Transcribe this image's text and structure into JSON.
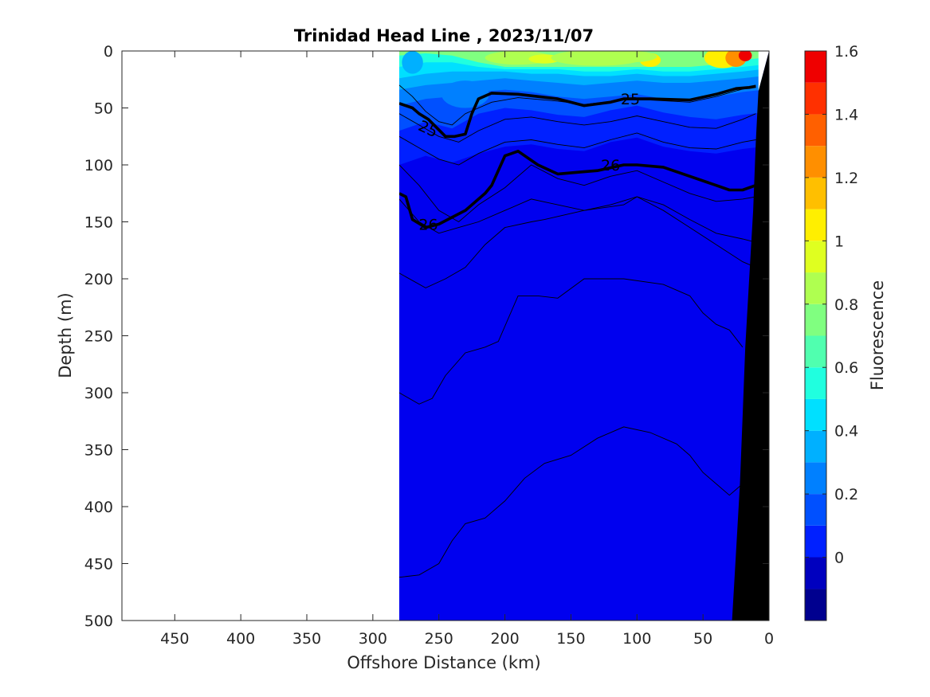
{
  "chart_data": {
    "type": "contour",
    "title": "Trinidad Head Line , 2023/11/07",
    "xlabel": "Offshore Distance (km)",
    "ylabel": "Depth (m)",
    "xlim": [
      490,
      0
    ],
    "ylim": [
      0,
      500
    ],
    "x_reversed": true,
    "y_reversed": true,
    "xticks": [
      450,
      400,
      350,
      300,
      250,
      200,
      150,
      100,
      50,
      0
    ],
    "yticks": [
      0,
      50,
      100,
      150,
      200,
      250,
      300,
      350,
      400,
      450,
      500
    ],
    "data_extent_km": [
      280,
      0
    ],
    "colorbar": {
      "label": "Fluorescence",
      "levels": [
        -0.2,
        -0.1,
        0,
        0.1,
        0.2,
        0.3,
        0.4,
        0.5,
        0.6,
        0.7,
        0.8,
        0.9,
        1.0,
        1.1,
        1.2,
        1.3,
        1.4,
        1.5,
        1.6
      ],
      "ticks": [
        0,
        0.2,
        0.4,
        0.6,
        0.8,
        1,
        1.2,
        1.4,
        1.6
      ],
      "tick_labels": [
        "0",
        "0.2",
        "0.4",
        "0.6",
        "0.8",
        "1",
        "1.2",
        "1.4",
        "1.6"
      ],
      "colors": [
        "#00008f",
        "#0000bf",
        "#0000ef",
        "#0020ff",
        "#0050ff",
        "#0080ff",
        "#00b0ff",
        "#00e0ff",
        "#20ffdf",
        "#50ffaf",
        "#80ff80",
        "#afff50",
        "#dfff20",
        "#ffef00",
        "#ffbf00",
        "#ff8f00",
        "#ff6000",
        "#ff3000",
        "#ef0000",
        "#bf0000"
      ]
    },
    "density_contour_labels": [
      {
        "text": "25",
        "x": 105,
        "y": 42
      },
      {
        "text": "25",
        "x": 258,
        "y": 68
      },
      {
        "text": "26",
        "x": 120,
        "y": 100
      },
      {
        "text": "26",
        "x": 258,
        "y": 152
      }
    ],
    "thin_isolines": [
      {
        "x": [
          280,
          270,
          260,
          250,
          240,
          230,
          210,
          190,
          160,
          140,
          110,
          90,
          60,
          40,
          25,
          15,
          10
        ],
        "y": [
          30,
          40,
          53,
          62,
          65,
          55,
          45,
          41,
          44,
          47,
          43,
          43,
          45,
          40,
          35,
          32,
          30
        ]
      },
      {
        "x": [
          280,
          265,
          250,
          235,
          220,
          200,
          180,
          160,
          140,
          120,
          100,
          80,
          60,
          40,
          20,
          10
        ],
        "y": [
          55,
          65,
          75,
          80,
          70,
          60,
          58,
          62,
          65,
          62,
          57,
          62,
          67,
          68,
          60,
          55
        ]
      },
      {
        "x": [
          280,
          265,
          250,
          235,
          220,
          200,
          180,
          160,
          140,
          120,
          100,
          80,
          60,
          40,
          20,
          10
        ],
        "y": [
          75,
          85,
          95,
          100,
          90,
          80,
          78,
          82,
          85,
          78,
          72,
          80,
          85,
          86,
          80,
          78
        ]
      },
      {
        "x": [
          280,
          265,
          250,
          235,
          220,
          200,
          180,
          160,
          140,
          120,
          100,
          80,
          60,
          40,
          20,
          10
        ],
        "y": [
          100,
          118,
          140,
          150,
          135,
          120,
          100,
          112,
          118,
          110,
          105,
          115,
          125,
          132,
          130,
          128
        ]
      },
      {
        "x": [
          280,
          265,
          250,
          235,
          220,
          200,
          180,
          160,
          140,
          120,
          100,
          80,
          60,
          40,
          20,
          10
        ],
        "y": [
          130,
          150,
          160,
          155,
          150,
          140,
          130,
          135,
          140,
          135,
          128,
          135,
          148,
          160,
          165,
          168
        ]
      },
      {
        "x": [
          280,
          260,
          245,
          230,
          215,
          200,
          180,
          170,
          140,
          110,
          100,
          80,
          60,
          40,
          20,
          10
        ],
        "y": [
          195,
          208,
          200,
          190,
          170,
          155,
          150,
          148,
          140,
          135,
          128,
          140,
          155,
          170,
          185,
          190
        ]
      },
      {
        "x": [
          280,
          265,
          255,
          245,
          230,
          215,
          205,
          190,
          175,
          160,
          140,
          110,
          80,
          60,
          50,
          40,
          30,
          20
        ],
        "y": [
          300,
          310,
          305,
          285,
          265,
          260,
          255,
          215,
          215,
          217,
          200,
          200,
          205,
          215,
          230,
          240,
          245,
          260
        ]
      },
      {
        "x": [
          280,
          265,
          250,
          240,
          230,
          215,
          200,
          185,
          170,
          150,
          130,
          110,
          90,
          70,
          60,
          50,
          40,
          30,
          20
        ],
        "y": [
          462,
          460,
          450,
          430,
          415,
          410,
          395,
          375,
          362,
          355,
          340,
          330,
          335,
          345,
          355,
          370,
          380,
          390,
          380
        ]
      }
    ],
    "bold_isolines": [
      {
        "label": "25",
        "x": [
          280,
          270,
          265,
          258,
          245,
          238,
          230,
          225,
          220,
          210,
          190,
          160,
          140,
          120,
          110,
          90,
          60,
          40,
          25,
          15,
          10
        ],
        "y": [
          46,
          50,
          55,
          60,
          75,
          75,
          73,
          55,
          42,
          37,
          38,
          42,
          48,
          45,
          42,
          42,
          43,
          38,
          33,
          32,
          31
        ]
      },
      {
        "label": "26",
        "x": [
          280,
          275,
          270,
          260,
          250,
          230,
          215,
          210,
          200,
          190,
          175,
          160,
          140,
          130,
          110,
          100,
          80,
          60,
          40,
          30,
          20,
          10
        ],
        "y": [
          125,
          128,
          148,
          155,
          152,
          140,
          125,
          118,
          92,
          88,
          100,
          108,
          106,
          105,
          100,
          100,
          102,
          110,
          118,
          122,
          122,
          118
        ]
      }
    ],
    "bathymetry": {
      "x": [
        0,
        8,
        10,
        12,
        15,
        18,
        20,
        22,
        25,
        28,
        0
      ],
      "y": [
        0,
        35,
        80,
        140,
        200,
        260,
        320,
        380,
        440,
        500,
        500
      ]
    }
  }
}
